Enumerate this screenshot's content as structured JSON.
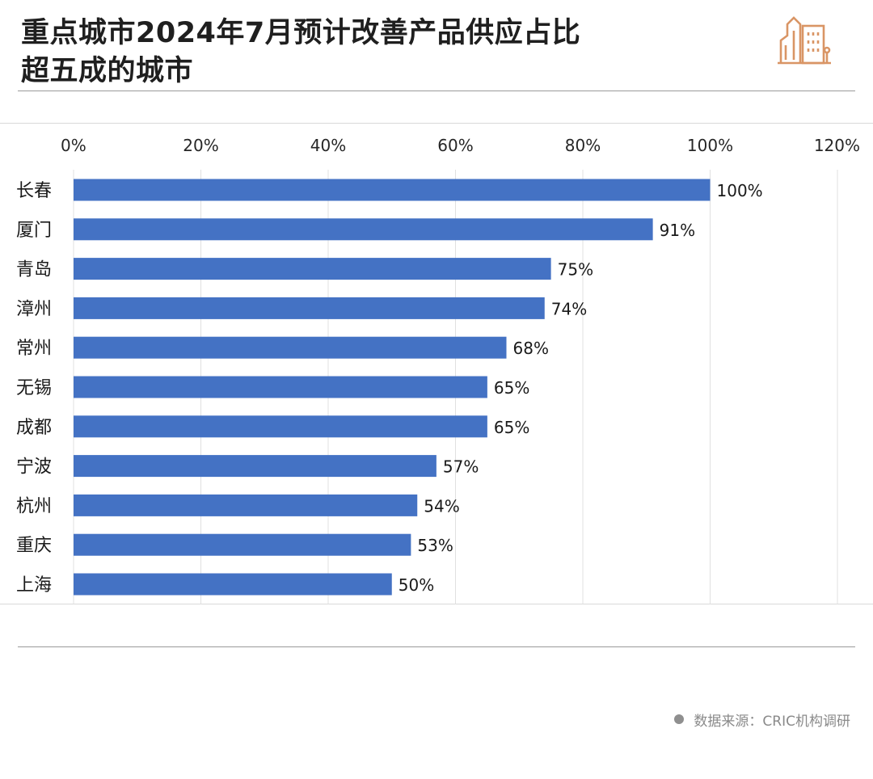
{
  "header": {
    "title_line1": "重点城市2024年7月预计改善产品供应占比",
    "title_line2": "超五成的城市"
  },
  "source": {
    "text": "数据来源：CRIC机构调研"
  },
  "colors": {
    "bar": "#4472c4",
    "logo": "#d99565",
    "grid": "#e0e0e0"
  },
  "chart_data": {
    "type": "bar",
    "orientation": "horizontal",
    "categories": [
      "长春",
      "厦门",
      "青岛",
      "漳州",
      "常州",
      "无锡",
      "成都",
      "宁波",
      "杭州",
      "重庆",
      "上海"
    ],
    "values": [
      100,
      91,
      75,
      74,
      68,
      65,
      65,
      57,
      54,
      53,
      50
    ],
    "value_labels": [
      "100%",
      "91%",
      "75%",
      "74%",
      "68%",
      "65%",
      "65%",
      "57%",
      "54%",
      "53%",
      "50%"
    ],
    "xlim": [
      0,
      120
    ],
    "x_ticks": [
      0,
      20,
      40,
      60,
      80,
      100,
      120
    ],
    "x_tick_labels": [
      "0%",
      "20%",
      "40%",
      "60%",
      "80%",
      "100%",
      "120%"
    ],
    "axis_position": "top",
    "grid": true,
    "legend": "none"
  }
}
